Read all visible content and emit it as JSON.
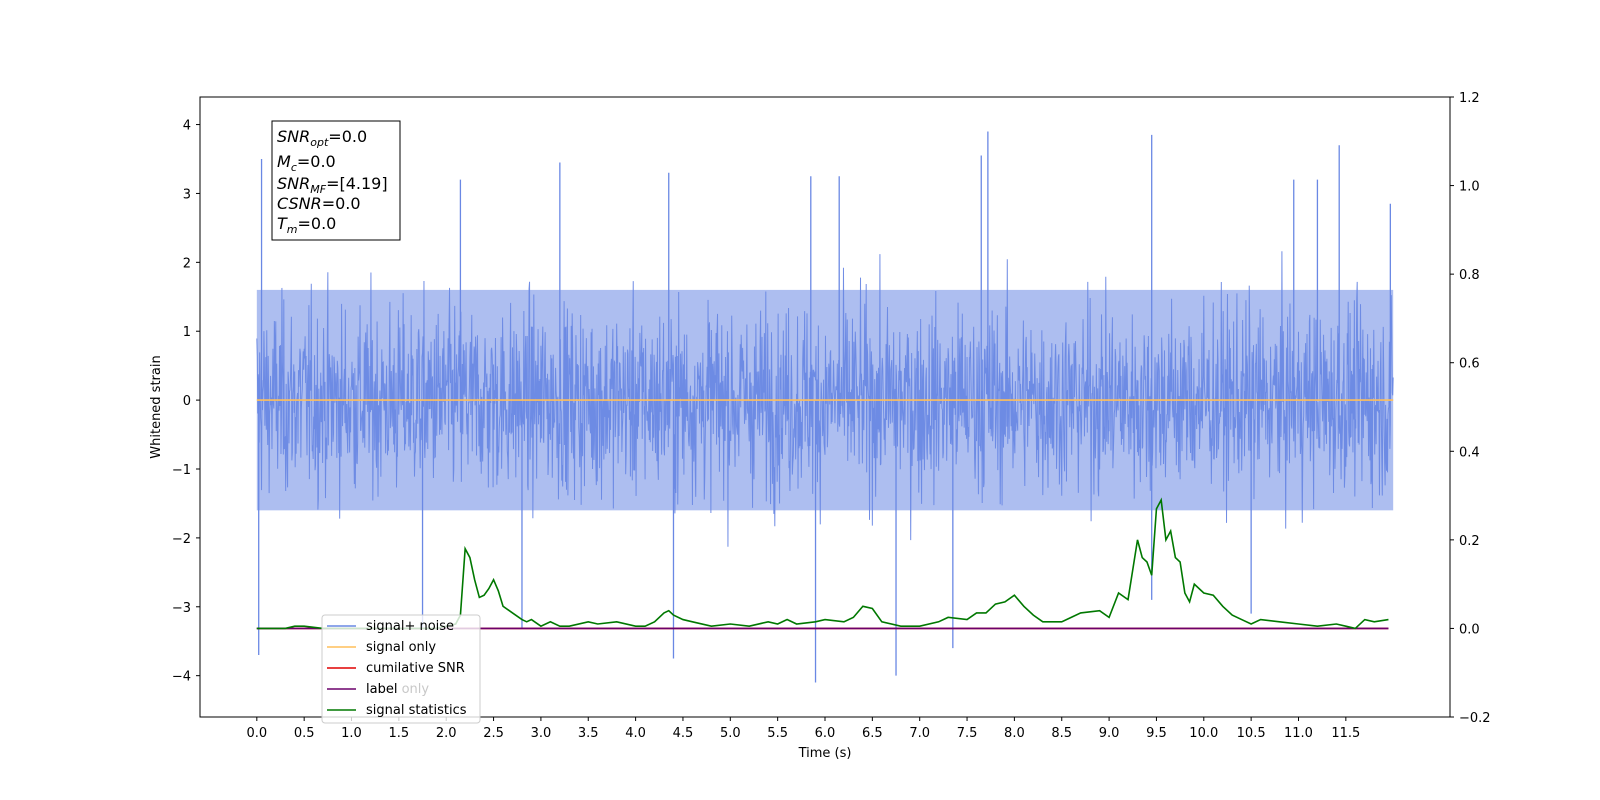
{
  "chart_data": {
    "type": "line",
    "xlabel": "Time (s)",
    "ylabel": "Whitened strain",
    "xlim": [
      -0.6,
      12.6
    ],
    "ylim": [
      -4.6,
      4.4
    ],
    "ylim_right": [
      -0.2,
      1.2
    ],
    "x_ticks": [
      "0.0",
      "0.5",
      "1.0",
      "1.5",
      "2.0",
      "2.5",
      "3.0",
      "3.5",
      "4.0",
      "4.5",
      "5.0",
      "5.5",
      "6.0",
      "6.5",
      "7.0",
      "7.5",
      "8.0",
      "8.5",
      "9.0",
      "9.5",
      "10.0",
      "10.5",
      "11.0",
      "11.5"
    ],
    "y_ticks": [
      "4",
      "3",
      "2",
      "1",
      "0",
      "−1",
      "−2",
      "−3",
      "−4"
    ],
    "y_ticks_right": [
      "1.2",
      "1.0",
      "0.8",
      "0.6",
      "0.4",
      "0.2",
      "0.0",
      "−0.2"
    ],
    "grid": false,
    "legend_placement": "lower-left",
    "stats_box": {
      "line1": {
        "main": "SNR",
        "sub": "opt",
        "rest": "=0.0"
      },
      "line2": {
        "main": "M",
        "sub": "c",
        "rest": "=0.0"
      },
      "line3": {
        "main": "SNR",
        "sub": "MF",
        "rest": "=[4.19]"
      },
      "line4": {
        "main": "CSNR",
        "sub": "",
        "rest": "=0.0"
      },
      "line5": {
        "main": "T",
        "sub": "m",
        "rest": "=0.0"
      }
    },
    "series": [
      {
        "name": "signal+ noise",
        "color": "#6a88e4",
        "axis": "left",
        "style": "noise band",
        "x_range": [
          0.0,
          12.0
        ],
        "typical_range": [
          -1.6,
          1.6
        ],
        "spikes_up": [
          [
            0.05,
            3.5
          ],
          [
            2.15,
            3.2
          ],
          [
            3.2,
            3.45
          ],
          [
            4.35,
            3.3
          ],
          [
            5.85,
            3.25
          ],
          [
            6.15,
            3.25
          ],
          [
            7.65,
            3.55
          ],
          [
            7.72,
            3.9
          ],
          [
            9.45,
            3.85
          ],
          [
            10.95,
            3.2
          ],
          [
            11.2,
            3.2
          ],
          [
            11.43,
            3.7
          ],
          [
            11.97,
            2.85
          ]
        ],
        "spikes_down": [
          [
            0.02,
            -3.7
          ],
          [
            1.75,
            -3.3
          ],
          [
            2.8,
            -3.3
          ],
          [
            4.4,
            -3.75
          ],
          [
            5.9,
            -4.1
          ],
          [
            6.75,
            -4.0
          ],
          [
            7.35,
            -3.6
          ],
          [
            9.45,
            -2.9
          ],
          [
            10.5,
            -3.1
          ]
        ]
      },
      {
        "name": "signal only",
        "color": "#ffbf5a",
        "axis": "left",
        "x": [
          0.0,
          12.0
        ],
        "y": [
          0.0,
          0.0
        ]
      },
      {
        "name": "cumilative SNR",
        "color": "#e00000",
        "axis": "right",
        "x": [
          0.0,
          11.95
        ],
        "y": [
          0.0,
          0.0
        ]
      },
      {
        "name": "label",
        "color": "#6b006b",
        "axis": "right",
        "x": [
          0.0,
          11.95
        ],
        "y": [
          0.0,
          0.0
        ]
      },
      {
        "name": "label only",
        "color": "#c8c8c8",
        "axis": "right",
        "x": [],
        "y": []
      },
      {
        "name": "signal statistics",
        "color": "#007800",
        "axis": "right",
        "x": [
          0.0,
          0.3,
          0.4,
          0.5,
          0.7,
          1.0,
          1.3,
          1.6,
          1.9,
          2.0,
          2.1,
          2.15,
          2.2,
          2.25,
          2.3,
          2.35,
          2.4,
          2.45,
          2.5,
          2.55,
          2.6,
          2.7,
          2.8,
          2.85,
          2.9,
          3.0,
          3.1,
          3.2,
          3.3,
          3.5,
          3.6,
          3.8,
          4.0,
          4.1,
          4.2,
          4.3,
          4.35,
          4.4,
          4.5,
          4.6,
          4.8,
          5.0,
          5.2,
          5.4,
          5.5,
          5.6,
          5.7,
          5.9,
          6.0,
          6.2,
          6.3,
          6.4,
          6.5,
          6.6,
          6.8,
          7.0,
          7.2,
          7.3,
          7.5,
          7.6,
          7.7,
          7.8,
          7.9,
          8.0,
          8.1,
          8.2,
          8.3,
          8.5,
          8.6,
          8.7,
          8.9,
          9.0,
          9.1,
          9.2,
          9.3,
          9.35,
          9.4,
          9.45,
          9.5,
          9.55,
          9.6,
          9.65,
          9.7,
          9.75,
          9.8,
          9.85,
          9.9,
          10.0,
          10.1,
          10.2,
          10.3,
          10.4,
          10.5,
          10.6,
          10.8,
          11.0,
          11.2,
          11.4,
          11.5,
          11.6,
          11.7,
          11.8,
          11.95
        ],
        "y": [
          0.0,
          0.0,
          0.005,
          0.005,
          0.0,
          0.0,
          0.0,
          0.0,
          0.0,
          0.005,
          0.01,
          0.03,
          0.18,
          0.16,
          0.11,
          0.07,
          0.075,
          0.09,
          0.11,
          0.085,
          0.05,
          0.035,
          0.02,
          0.015,
          0.02,
          0.005,
          0.015,
          0.005,
          0.005,
          0.015,
          0.01,
          0.015,
          0.005,
          0.005,
          0.015,
          0.035,
          0.04,
          0.03,
          0.02,
          0.015,
          0.005,
          0.01,
          0.005,
          0.015,
          0.01,
          0.02,
          0.01,
          0.015,
          0.02,
          0.015,
          0.025,
          0.05,
          0.045,
          0.015,
          0.005,
          0.005,
          0.015,
          0.025,
          0.02,
          0.035,
          0.035,
          0.055,
          0.06,
          0.075,
          0.05,
          0.03,
          0.015,
          0.015,
          0.025,
          0.035,
          0.04,
          0.025,
          0.08,
          0.065,
          0.2,
          0.16,
          0.15,
          0.12,
          0.27,
          0.29,
          0.2,
          0.22,
          0.16,
          0.15,
          0.08,
          0.06,
          0.1,
          0.08,
          0.075,
          0.05,
          0.03,
          0.02,
          0.01,
          0.02,
          0.015,
          0.01,
          0.005,
          0.01,
          0.005,
          0.0,
          0.02,
          0.015,
          0.02
        ]
      }
    ]
  }
}
